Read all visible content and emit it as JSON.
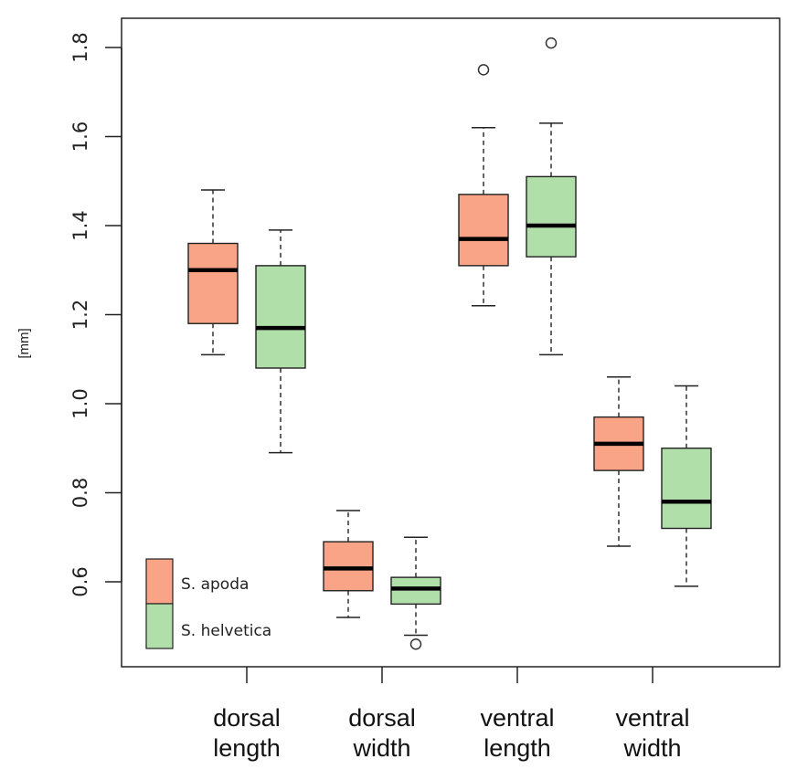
{
  "chart_data": {
    "type": "boxplot",
    "ylabel": "[mm]",
    "ylim": [
      0.4,
      1.85
    ],
    "yticks": [
      "0.6",
      "0.8",
      "1.0",
      "1.2",
      "1.4",
      "1.6",
      "1.8"
    ],
    "categories": [
      {
        "line1": "dorsal",
        "line2": "length"
      },
      {
        "line1": "dorsal",
        "line2": "width"
      },
      {
        "line1": "ventral",
        "line2": "length"
      },
      {
        "line1": "ventral",
        "line2": "width"
      }
    ],
    "series": [
      {
        "name": "S. apoda",
        "color": "#f9a387",
        "boxes": [
          {
            "whisker_low": 1.11,
            "q1": 1.18,
            "median": 1.3,
            "q3": 1.36,
            "whisker_high": 1.48,
            "outliers": []
          },
          {
            "whisker_low": 0.52,
            "q1": 0.58,
            "median": 0.63,
            "q3": 0.69,
            "whisker_high": 0.76,
            "outliers": []
          },
          {
            "whisker_low": 1.22,
            "q1": 1.31,
            "median": 1.37,
            "q3": 1.47,
            "whisker_high": 1.62,
            "outliers": [
              1.75
            ]
          },
          {
            "whisker_low": 0.68,
            "q1": 0.85,
            "median": 0.91,
            "q3": 0.97,
            "whisker_high": 1.06,
            "outliers": []
          }
        ]
      },
      {
        "name": "S. helvetica",
        "color": "#b1dfa9",
        "boxes": [
          {
            "whisker_low": 0.89,
            "q1": 1.08,
            "median": 1.17,
            "q3": 1.31,
            "whisker_high": 1.39,
            "outliers": []
          },
          {
            "whisker_low": 0.48,
            "q1": 0.55,
            "median": 0.585,
            "q3": 0.61,
            "whisker_high": 0.7,
            "outliers": [
              0.46
            ]
          },
          {
            "whisker_low": 1.11,
            "q1": 1.33,
            "median": 1.4,
            "q3": 1.51,
            "whisker_high": 1.63,
            "outliers": [
              1.81
            ]
          },
          {
            "whisker_low": 0.59,
            "q1": 0.72,
            "median": 0.78,
            "q3": 0.9,
            "whisker_high": 1.04,
            "outliers": []
          }
        ]
      }
    ],
    "legend": {
      "position": "bottom-left"
    }
  }
}
